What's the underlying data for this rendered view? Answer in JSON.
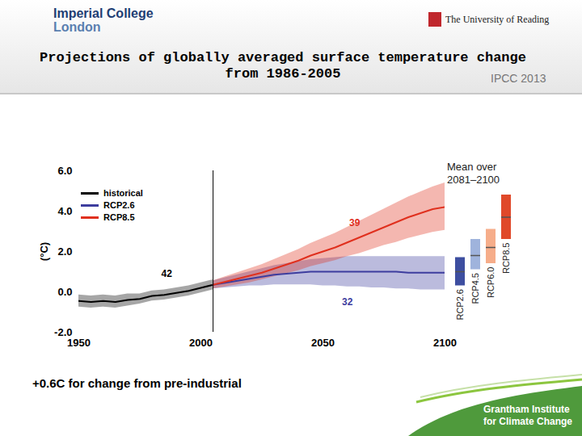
{
  "header": {
    "logos": [
      [
        "Imperial College",
        "London"
      ],
      "The University of Reading"
    ],
    "source": "IPCC 2013"
  },
  "caption": "+0.6C for change from pre-industrial",
  "footer_logo": [
    "Grantham Institute",
    "for Climate Change"
  ],
  "chart_data": {
    "type": "line",
    "title": "Projections of globally averaged surface temperature change from 1986-2005",
    "y_label": "(°C)",
    "xlim": [
      1950,
      2100
    ],
    "xticks": [
      1950,
      2000,
      2050,
      2100
    ],
    "ylim": [
      -2,
      6
    ],
    "yticks": [
      {
        "value": -2,
        "label": "-2.0"
      },
      {
        "value": 0,
        "label": "0.0"
      },
      {
        "value": 2,
        "label": "2.0"
      },
      {
        "value": 4,
        "label": "4.0"
      },
      {
        "value": 6,
        "label": "6.0"
      }
    ],
    "vertical_lines": [
      2005
    ],
    "series": [
      {
        "name": "historical",
        "color": "#000000",
        "x": [
          1950,
          1955,
          1960,
          1965,
          1970,
          1975,
          1980,
          1985,
          1990,
          1995,
          2000,
          2005
        ],
        "values": [
          -0.45,
          -0.5,
          -0.45,
          -0.5,
          -0.4,
          -0.35,
          -0.2,
          -0.15,
          -0.05,
          0.05,
          0.2,
          0.35
        ],
        "lower": [
          -0.75,
          -0.8,
          -0.75,
          -0.8,
          -0.7,
          -0.6,
          -0.45,
          -0.4,
          -0.3,
          -0.2,
          -0.05,
          0.1
        ],
        "upper": [
          -0.15,
          -0.2,
          -0.15,
          -0.2,
          -0.1,
          -0.1,
          0.05,
          0.1,
          0.2,
          0.3,
          0.45,
          0.6
        ]
      },
      {
        "name": "RCP2.6",
        "color": "#3d3d9e",
        "x": [
          2005,
          2010,
          2015,
          2020,
          2025,
          2030,
          2035,
          2040,
          2045,
          2050,
          2055,
          2060,
          2065,
          2070,
          2075,
          2080,
          2085,
          2090,
          2095,
          2100
        ],
        "values": [
          0.35,
          0.45,
          0.55,
          0.65,
          0.75,
          0.85,
          0.9,
          0.95,
          1.0,
          1.0,
          1.0,
          1.0,
          1.0,
          1.0,
          1.0,
          1.0,
          0.95,
          0.95,
          0.95,
          0.95
        ],
        "lower": [
          0.15,
          0.2,
          0.25,
          0.3,
          0.3,
          0.35,
          0.35,
          0.35,
          0.35,
          0.3,
          0.3,
          0.25,
          0.25,
          0.2,
          0.2,
          0.15,
          0.15,
          0.1,
          0.1,
          0.1
        ],
        "upper": [
          0.55,
          0.7,
          0.85,
          1.0,
          1.15,
          1.3,
          1.4,
          1.5,
          1.6,
          1.65,
          1.7,
          1.75,
          1.75,
          1.75,
          1.75,
          1.75,
          1.75,
          1.75,
          1.75,
          1.75
        ]
      },
      {
        "name": "RCP8.5",
        "color": "#e0301e",
        "x": [
          2005,
          2010,
          2015,
          2020,
          2025,
          2030,
          2035,
          2040,
          2045,
          2050,
          2055,
          2060,
          2065,
          2070,
          2075,
          2080,
          2085,
          2090,
          2095,
          2100
        ],
        "values": [
          0.35,
          0.5,
          0.65,
          0.8,
          0.95,
          1.15,
          1.35,
          1.55,
          1.8,
          2.0,
          2.2,
          2.45,
          2.7,
          2.95,
          3.2,
          3.45,
          3.7,
          3.9,
          4.1,
          4.2
        ],
        "lower": [
          0.15,
          0.25,
          0.35,
          0.45,
          0.6,
          0.75,
          0.9,
          1.05,
          1.25,
          1.4,
          1.55,
          1.75,
          1.9,
          2.1,
          2.3,
          2.45,
          2.65,
          2.8,
          2.95,
          3.05
        ],
        "upper": [
          0.55,
          0.75,
          0.95,
          1.15,
          1.35,
          1.6,
          1.85,
          2.1,
          2.4,
          2.65,
          2.9,
          3.2,
          3.5,
          3.8,
          4.1,
          4.4,
          4.7,
          4.95,
          5.2,
          5.4
        ]
      }
    ],
    "annotations": [
      {
        "text": "42",
        "x": 1986,
        "y": 0.9,
        "color": "#000000"
      },
      {
        "text": "39",
        "x": 2063,
        "y": 3.4,
        "color": "#e0301e"
      },
      {
        "text": "32",
        "x": 2060,
        "y": -0.5,
        "color": "#3d3d9e"
      }
    ],
    "mean_panel": {
      "title": "Mean over 2081–2100",
      "categories": [
        "RCP2.6",
        "RCP4.5",
        "RCP6.0",
        "RCP8.5"
      ],
      "means": [
        1.0,
        1.8,
        2.2,
        3.7
      ],
      "lower": [
        0.3,
        1.1,
        1.4,
        2.6
      ],
      "upper": [
        1.7,
        2.6,
        3.1,
        4.8
      ],
      "colors": [
        "#3d4ea0",
        "#9fb3dc",
        "#f6ad8a",
        "#e0492a"
      ]
    }
  }
}
